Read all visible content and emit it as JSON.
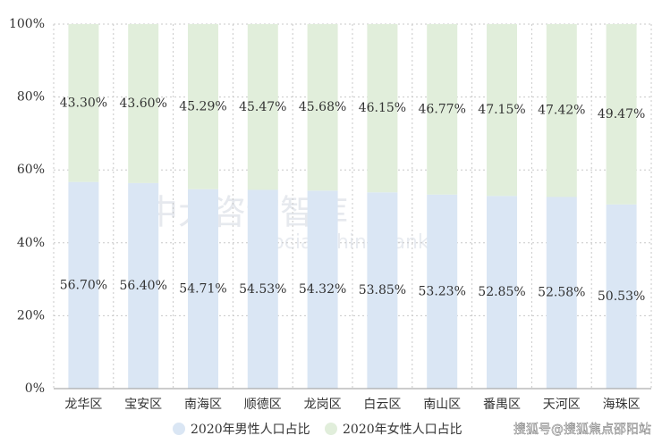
{
  "chart_data": {
    "type": "stacked_bar",
    "categories": [
      "龙华区",
      "宝安区",
      "南海区",
      "顺德区",
      "龙岗区",
      "白云区",
      "南山区",
      "番禺区",
      "天河区",
      "海珠区"
    ],
    "series": [
      {
        "name": "2020年男性人口占比",
        "color": "#dae6f4",
        "values": [
          56.7,
          56.4,
          54.71,
          54.53,
          54.32,
          53.85,
          53.23,
          52.85,
          52.58,
          50.53
        ],
        "value_labels": [
          "56.70%",
          "56.40%",
          "54.71%",
          "54.53%",
          "54.32%",
          "53.85%",
          "53.23%",
          "52.85%",
          "52.58%",
          "50.53%"
        ]
      },
      {
        "name": "2020年女性人口占比",
        "color": "#e1eedb",
        "values": [
          43.3,
          43.6,
          45.29,
          45.47,
          45.68,
          46.15,
          46.77,
          47.15,
          47.42,
          49.47
        ],
        "value_labels": [
          "43.30%",
          "43.60%",
          "45.29%",
          "45.47%",
          "45.68%",
          "46.15%",
          "46.77%",
          "47.15%",
          "47.42%",
          "49.47%"
        ]
      }
    ],
    "ylim": [
      0,
      100
    ],
    "yticks": [
      {
        "value": 0,
        "label": "0%"
      },
      {
        "value": 20,
        "label": "20%"
      },
      {
        "value": 40,
        "label": "40%"
      },
      {
        "value": 60,
        "label": "60%"
      },
      {
        "value": 80,
        "label": "80%"
      },
      {
        "value": 100,
        "label": "100%"
      }
    ],
    "grid": true,
    "watermark": [
      "中大咨询智库",
      "Social Think Tank"
    ],
    "credit": "搜狐号@搜狐焦点邵阳站"
  }
}
